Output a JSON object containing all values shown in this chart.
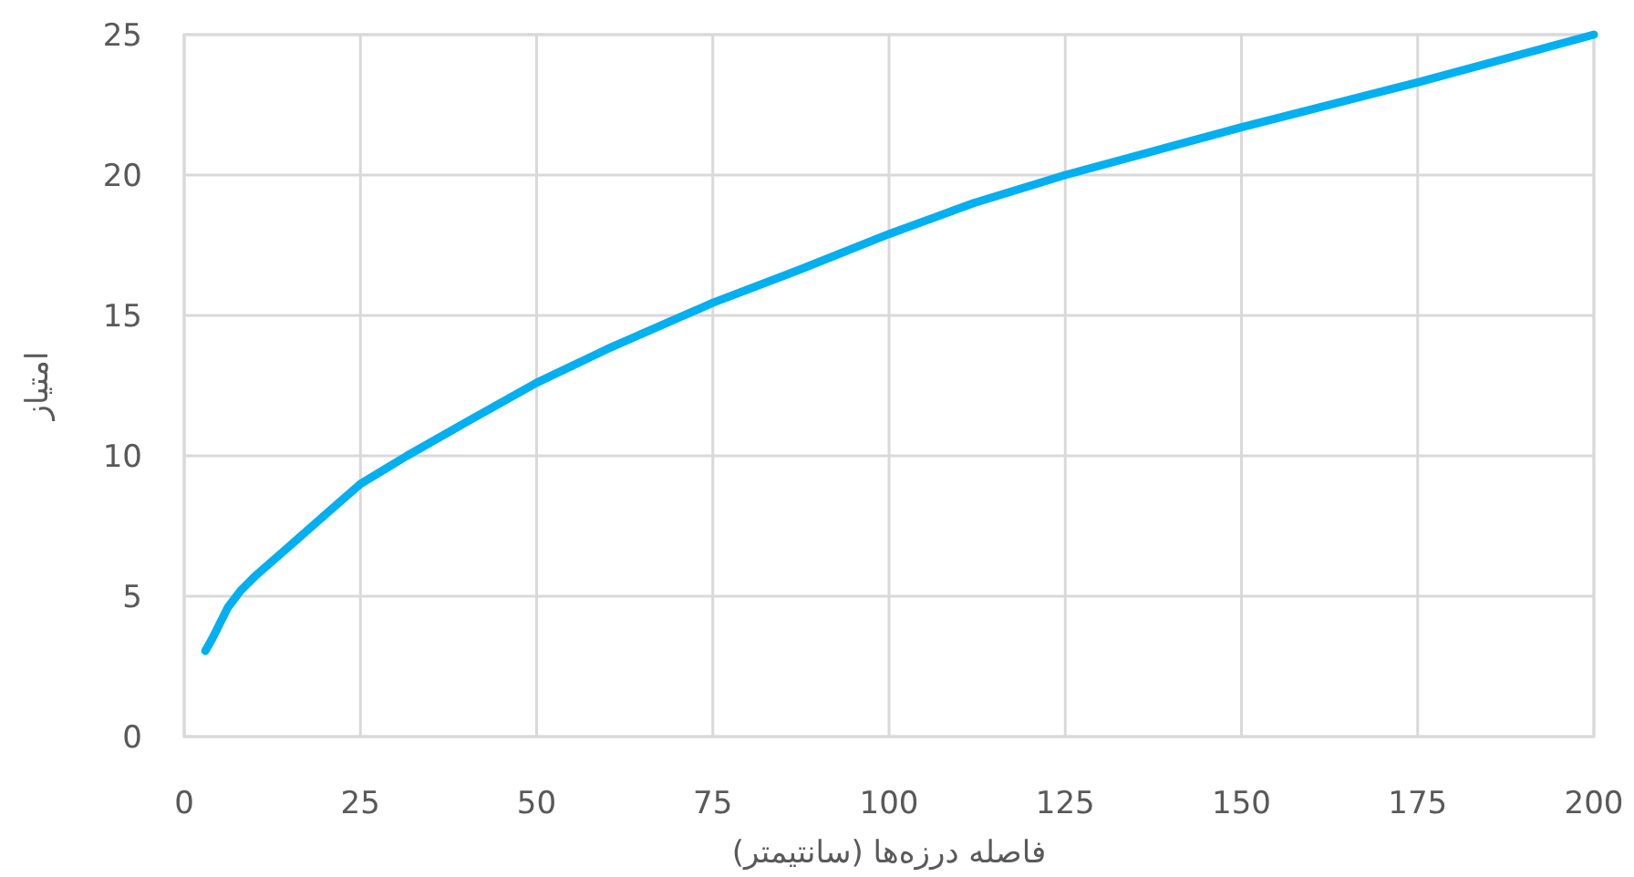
{
  "chart_data": {
    "type": "line",
    "xlabel": "فاصله درزه‌ها (سانتیمتر)",
    "ylabel": "امتیاز",
    "x": [
      3,
      4,
      5,
      6.2,
      8,
      10,
      15,
      20,
      25,
      31.6,
      40,
      50,
      60,
      75,
      87,
      100,
      112,
      125,
      150,
      175,
      200
    ],
    "series": [
      {
        "color": "#00b0f0",
        "values": [
          3.05,
          3.5,
          4.0,
          4.6,
          5.2,
          5.7,
          6.8,
          7.9,
          9.0,
          10.0,
          11.2,
          12.6,
          13.8,
          15.45,
          16.6,
          17.9,
          19.0,
          20.0,
          21.7,
          23.3,
          25.0
        ]
      }
    ],
    "xlim": [
      0,
      200
    ],
    "xticks": [
      0,
      25,
      50,
      75,
      100,
      125,
      150,
      175,
      200
    ],
    "ylim": [
      0,
      25
    ],
    "yticks": [
      0,
      5,
      10,
      15,
      20,
      25
    ],
    "grid": true,
    "marker": "none",
    "line_style": "solid"
  }
}
